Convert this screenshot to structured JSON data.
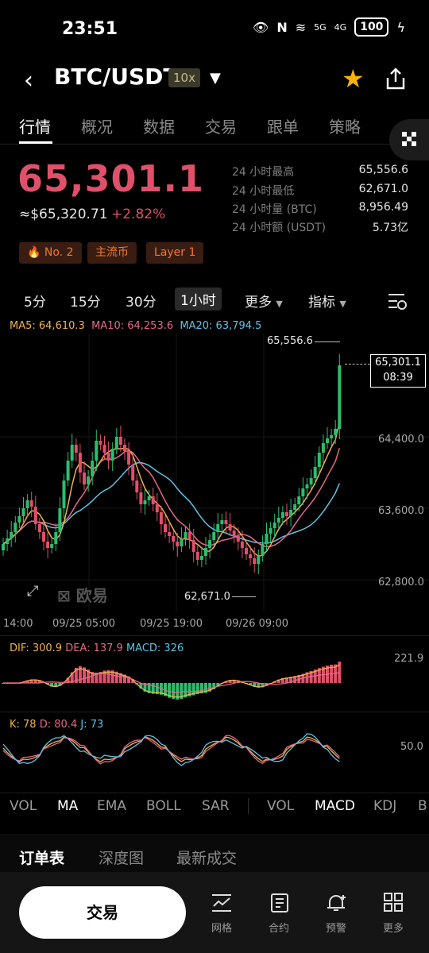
{
  "status": {
    "time": "23:51",
    "battery": "100",
    "signal1": "5G",
    "signal2": "4G"
  },
  "header": {
    "pair": "BTC/USDT",
    "leverage": "10x"
  },
  "tabs": [
    "行情",
    "概况",
    "数据",
    "交易",
    "跟单",
    "策略"
  ],
  "price": {
    "last": "65,301.1",
    "usd": "≈$65,320.71",
    "change": "+2.82%"
  },
  "stats": [
    {
      "label": "24 小时最高",
      "value": "65,556.6"
    },
    {
      "label": "24 小时最低",
      "value": "62,671.0"
    },
    {
      "label": "24 小时量 (BTC)",
      "value": "8,956.49"
    },
    {
      "label": "24 小时额 (USDT)",
      "value": "5.73亿"
    }
  ],
  "badges": [
    "No. 2",
    "主流币",
    "Layer 1"
  ],
  "intervals": [
    "5分",
    "15分",
    "30分",
    "1小时",
    "更多",
    "指标"
  ],
  "active_interval": "1小时",
  "ma": {
    "ma5": "MA5: 64,610.3",
    "ma10": "MA10: 64,253.6",
    "ma20": "MA20: 63,794.5"
  },
  "chart_data": {
    "type": "candlestick",
    "y_ticks": [
      "64,400.0",
      "63,600.0",
      "62,800.0"
    ],
    "x_ticks": [
      "14:00",
      "09/25 05:00",
      "09/25 19:00",
      "09/26 09:00"
    ],
    "high_label": "65,556.6",
    "low_label": "62,671.0",
    "current_price": "65,301.1",
    "countdown": "08:39",
    "watermark": "欧易",
    "colors": {
      "up": "#2dbd6e",
      "down": "#e0506a",
      "ma5": "#f0b24d",
      "ma10": "#e8678a",
      "ma20": "#5ec3e6"
    }
  },
  "macd": {
    "dif": "DIF: 300.9",
    "dea": "DEA: 137.9",
    "macd": "MACD: 326",
    "axis": "221.9"
  },
  "kdj": {
    "k": "K: 78",
    "d": "D: 80.4",
    "j": "J: 73",
    "axis": "50.0"
  },
  "indicator_tabs": [
    "VOL",
    "MA",
    "EMA",
    "BOLL",
    "SAR",
    "VOL",
    "MACD",
    "KDJ",
    "B"
  ],
  "panel_tabs": [
    "订单表",
    "深度图",
    "最新成交"
  ],
  "nav": {
    "trade": "交易",
    "items": [
      "网格",
      "合约",
      "预警",
      "更多"
    ]
  }
}
